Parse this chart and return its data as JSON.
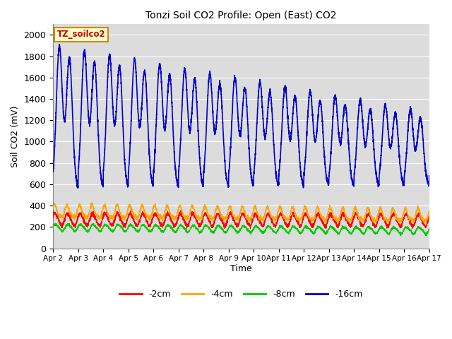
{
  "title": "Tonzi Soil CO2 Profile: Open (East) CO2",
  "ylabel": "Soil CO2 (mV)",
  "xlabel": "Time",
  "legend_label": "TZ_soilco2",
  "series_labels": [
    "-2cm",
    "-4cm",
    "-8cm",
    "-16cm"
  ],
  "series_colors": [
    "#ff0000",
    "#ffa500",
    "#00cc00",
    "#0000cc"
  ],
  "ylim": [
    0,
    2100
  ],
  "bg_color": "#dcdcdc",
  "xtick_labels": [
    "Apr 2",
    "Apr 3",
    "Apr 4",
    "Apr 5",
    "Apr 6",
    "Apr 7",
    "Apr 8",
    "Apr 9",
    "Apr 10",
    "Apr 11",
    "Apr 12",
    "Apr 13",
    "Apr 14",
    "Apr 15",
    "Apr 16",
    "Apr 17"
  ],
  "n_days": 15,
  "samples_per_day": 288,
  "grid_color": "#ffffff",
  "yticks": [
    0,
    200,
    400,
    600,
    800,
    1000,
    1200,
    1400,
    1600,
    1800,
    2000
  ]
}
